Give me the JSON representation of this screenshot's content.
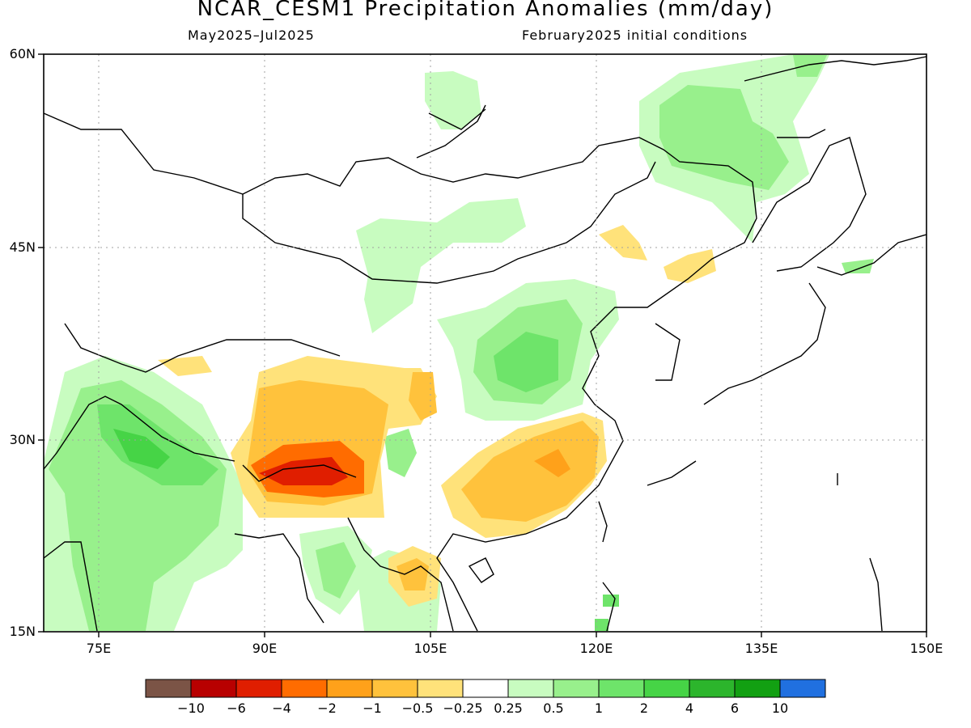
{
  "title": "NCAR_CESM1 Precipitation Anomalies (mm/day)",
  "subtitle_left": "May2025–Jul2025",
  "subtitle_right": "February2025 initial conditions",
  "lat_labels": [
    "60N",
    "45N",
    "30N",
    "15N"
  ],
  "lon_labels": [
    "75E",
    "90E",
    "105E",
    "120E",
    "135E",
    "150E"
  ],
  "colorbar": {
    "labels": [
      "−10",
      "−6",
      "−4",
      "−2",
      "−1",
      "−0.5",
      "−0.25",
      "0.25",
      "0.5",
      "1",
      "2",
      "4",
      "6",
      "10"
    ],
    "colors": [
      "#7b5446",
      "#b80000",
      "#e01e00",
      "#ff6c00",
      "#ffa11a",
      "#ffc23c",
      "#ffe27a",
      "#ffffff",
      "#c8fcc0",
      "#98f08c",
      "#6ee46a",
      "#46d446",
      "#2cb52c",
      "#12a012",
      "#2070e0"
    ]
  }
}
